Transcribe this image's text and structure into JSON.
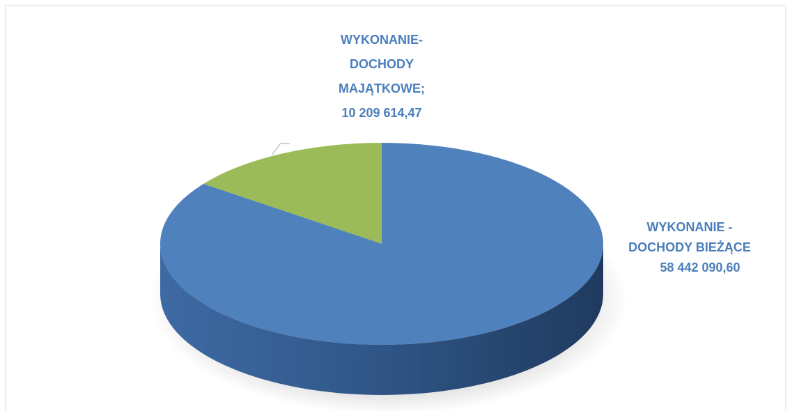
{
  "chart_data": {
    "type": "pie",
    "categories": [
      "WYKONANIE - DOCHODY BIEŻĄCE",
      "WYKONANIE- DOCHODY MAJĄTKOWE;"
    ],
    "values": [
      58442090.6,
      10209614.47
    ],
    "value_labels": [
      "58 442 090,60",
      "10 209 614,47"
    ],
    "colors": [
      "#4f81bd",
      "#9bbb59"
    ],
    "label_color": "#4a7ebb"
  }
}
